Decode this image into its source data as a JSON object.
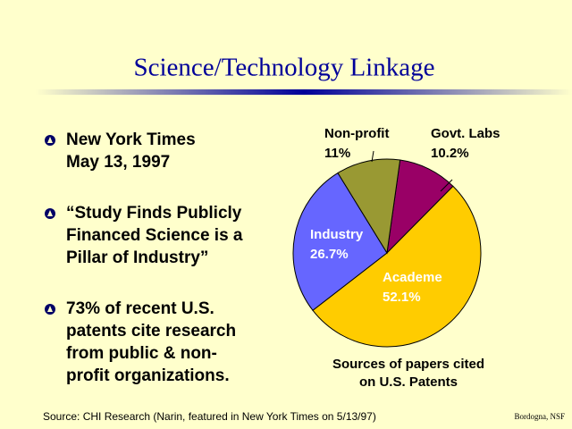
{
  "slide": {
    "title": "Science/Technology Linkage",
    "bullets": [
      [
        "New York Times",
        "May 13, 1997"
      ],
      [
        "“Study Finds Publicly",
        "Financed Science is a",
        "Pillar of Industry”"
      ],
      [
        "73% of recent U.S.",
        "patents cite research",
        "from public & non-",
        "profit organizations."
      ]
    ]
  },
  "chart_data": {
    "type": "pie",
    "categories": [
      "Govt. Labs",
      "Academe",
      "Industry",
      "Non-profit"
    ],
    "values": [
      10.2,
      52.1,
      26.7,
      11
    ],
    "value_labels": [
      "10.2%",
      "52.1%",
      "26.7%",
      "11%"
    ],
    "colors": [
      "#990066",
      "#ffcc00",
      "#6666ff",
      "#999933"
    ],
    "caption": [
      "Sources of papers cited",
      "on U.S. Patents"
    ]
  },
  "footer": {
    "source": "Source: CHI Research (Narin, featured in New York Times on 5/13/97)",
    "credit": "Bordogna, NSF"
  }
}
